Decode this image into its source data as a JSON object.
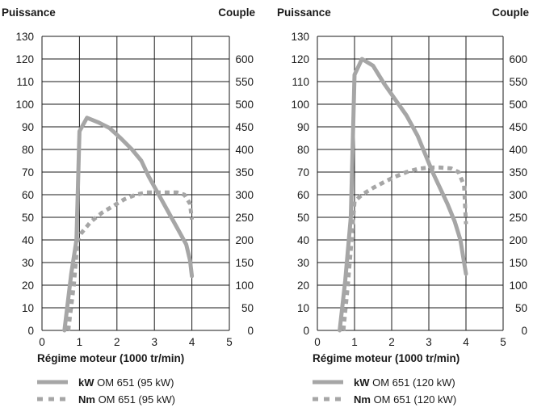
{
  "chart_data": [
    {
      "type": "line",
      "ylabel_left": "Puissance",
      "ylabel_right": "Couple",
      "xlabel": "Régime moteur (1000 tr/min)",
      "xlim": [
        0,
        5
      ],
      "ylim_left": [
        0,
        130
      ],
      "ylim_right": [
        0,
        650
      ],
      "x_ticks": [
        "0",
        "1",
        "2",
        "3",
        "4",
        "5"
      ],
      "y_left_ticks": [
        "0",
        "10",
        "20",
        "30",
        "40",
        "50",
        "60",
        "70",
        "80",
        "90",
        "100",
        "110",
        "120",
        "130"
      ],
      "y_right_ticks": [
        "0",
        "50",
        "100",
        "150",
        "200",
        "250",
        "300",
        "350",
        "400",
        "450",
        "500",
        "550",
        "600"
      ],
      "grid": true,
      "series": [
        {
          "legend_bold": "kW",
          "legend_rest": "OM 651 (95 kW)",
          "axis": "left",
          "style": "solid",
          "color": "#a6a6a6",
          "x": [
            0.6,
            0.78,
            0.92,
            1.0,
            1.2,
            1.5,
            1.8,
            2.1,
            2.4,
            2.65,
            2.85,
            3.05,
            3.25,
            3.45,
            3.65,
            3.85,
            3.95,
            4.0
          ],
          "y": [
            0,
            25,
            40,
            88,
            94,
            92,
            89.5,
            85,
            80,
            75,
            68,
            62,
            56,
            50,
            44,
            38,
            31,
            24
          ]
        },
        {
          "legend_bold": "Nm",
          "legend_rest": "OM 651 (95 kW)",
          "axis": "right",
          "style": "dashed",
          "color": "#a6a6a6",
          "x": [
            0.7,
            0.85,
            0.95,
            1.05,
            1.3,
            1.6,
            1.9,
            2.2,
            2.5,
            2.8,
            3.0,
            3.3,
            3.6,
            3.8,
            3.95,
            4.0
          ],
          "y": [
            0,
            100,
            200,
            215,
            240,
            260,
            275,
            290,
            300,
            305,
            305,
            305,
            305,
            300,
            280,
            245
          ]
        }
      ]
    },
    {
      "type": "line",
      "ylabel_left": "Puissance",
      "ylabel_right": "Couple",
      "xlabel": "Régime moteur (1000 tr/min)",
      "xlim": [
        0,
        5
      ],
      "ylim_left": [
        0,
        130
      ],
      "ylim_right": [
        0,
        650
      ],
      "x_ticks": [
        "0",
        "1",
        "2",
        "3",
        "4",
        "5"
      ],
      "y_left_ticks": [
        "0",
        "10",
        "20",
        "30",
        "40",
        "50",
        "60",
        "70",
        "80",
        "90",
        "100",
        "110",
        "120",
        "130"
      ],
      "y_right_ticks": [
        "0",
        "50",
        "100",
        "150",
        "200",
        "250",
        "300",
        "350",
        "400",
        "450",
        "500",
        "550",
        "600"
      ],
      "grid": true,
      "series": [
        {
          "legend_bold": "kW",
          "legend_rest": "OM 651 (120 kW)",
          "axis": "left",
          "style": "solid",
          "color": "#a6a6a6",
          "x": [
            0.6,
            0.75,
            0.9,
            1.0,
            1.2,
            1.5,
            1.8,
            2.1,
            2.4,
            2.7,
            2.9,
            3.1,
            3.3,
            3.5,
            3.7,
            3.85,
            4.0
          ],
          "y": [
            0,
            22,
            50,
            113,
            120,
            117,
            109,
            102,
            95,
            86,
            78,
            70,
            63,
            56,
            48,
            40,
            25
          ]
        },
        {
          "legend_bold": "Nm",
          "legend_rest": "OM 651 (120 kW)",
          "axis": "right",
          "style": "dashed",
          "color": "#a6a6a6",
          "x": [
            0.7,
            0.82,
            0.92,
            1.0,
            1.2,
            1.5,
            1.8,
            2.1,
            2.4,
            2.7,
            3.0,
            3.3,
            3.6,
            3.8,
            3.95,
            4.0
          ],
          "y": [
            0,
            100,
            200,
            285,
            300,
            315,
            328,
            340,
            350,
            357,
            360,
            360,
            358,
            350,
            320,
            235
          ]
        }
      ]
    }
  ]
}
